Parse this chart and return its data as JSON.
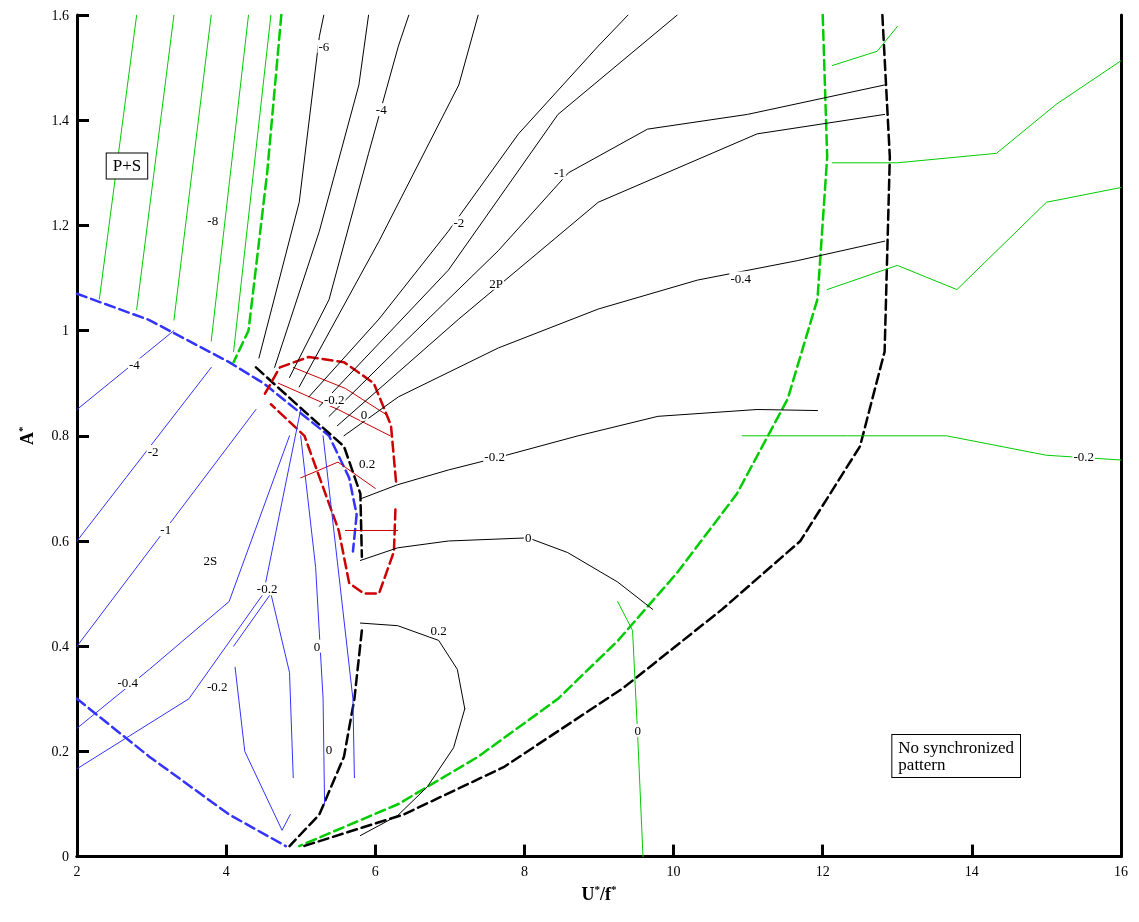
{
  "chart_data": {
    "type": "line",
    "xlabel": "U$^{*}$/f$^{*}$",
    "ylabel": "A$^{*}$",
    "xlim": [
      2,
      16
    ],
    "ylim": [
      0,
      1.6
    ],
    "xticks": [
      2,
      4,
      6,
      8,
      10,
      12,
      14,
      16
    ],
    "yticks": [
      0,
      0.2,
      0.4,
      0.6,
      0.8,
      1,
      1.2,
      1.4,
      1.6
    ],
    "grid": false,
    "marker": "none",
    "series": [
      {
        "color": "#3333ff",
        "line_style": "dashed",
        "x": [
          2,
          2.97,
          4.04,
          4.5,
          4.85,
          5.38,
          5.65,
          5.75,
          5.7
        ],
        "values": [
          1.07,
          1.02,
          0.94,
          0.9,
          0.86,
          0.8,
          0.72,
          0.65,
          0.58
        ]
      },
      {
        "color": "#3333ff",
        "line_style": "dashed",
        "x": [
          2,
          2.97,
          4.04,
          4.8
        ],
        "values": [
          0.3,
          0.19,
          0.08,
          0.02
        ]
      },
      {
        "color": "#00cc00",
        "line_style": "dashed",
        "x": [
          4.74,
          4.55,
          4.3,
          4.1
        ],
        "values": [
          1.6,
          1.3,
          1.0,
          0.94
        ]
      },
      {
        "color": "#00cc00",
        "line_style": "dashed",
        "x": [
          12,
          12.06,
          11.93,
          11.53,
          10.85,
          10.05,
          9.25,
          8.45,
          7.38,
          6.31,
          4.98
        ],
        "values": [
          1.6,
          1.33,
          1.06,
          0.87,
          0.69,
          0.54,
          0.41,
          0.3,
          0.19,
          0.1,
          0.02
        ]
      },
      {
        "color": "#000000",
        "line_style": "dashed",
        "x": [
          12.8,
          12.9,
          12.83,
          12.5,
          11.7,
          10.65,
          9.32,
          7.72,
          6.38,
          5.04
        ],
        "values": [
          1.6,
          1.33,
          0.96,
          0.78,
          0.6,
          0.47,
          0.32,
          0.17,
          0.08,
          0.02
        ]
      },
      {
        "color": "#000000",
        "line_style": "dashed",
        "x": [
          4.4,
          5.1,
          5.58,
          5.8,
          5.82
        ],
        "values": [
          0.93,
          0.84,
          0.78,
          0.69,
          0.57
        ]
      },
      {
        "color": "#000000",
        "line_style": "dashed",
        "x": [
          5.82,
          5.72,
          5.58,
          5.25,
          4.85
        ],
        "values": [
          0.43,
          0.3,
          0.19,
          0.08,
          0.02
        ]
      },
      {
        "color": "#cc0000",
        "line_style": "dashed",
        "x": [
          4.52,
          4.72,
          5.11,
          5.58,
          5.98,
          6.21,
          6.28
        ],
        "values": [
          0.88,
          0.93,
          0.95,
          0.94,
          0.9,
          0.82,
          0.71
        ]
      },
      {
        "color": "#cc0000",
        "line_style": "dashed",
        "x": [
          6.27,
          6.25,
          6.05,
          5.85,
          5.65,
          5.51,
          5.05,
          4.6
        ],
        "values": [
          0.66,
          0.58,
          0.5,
          0.5,
          0.52,
          0.62,
          0.8,
          0.86
        ]
      },
      {
        "color": "#cc0000",
        "line_style": "solid",
        "x": [
          4.7,
          5.5,
          6.2
        ],
        "values": [
          0.9,
          0.85,
          0.8
        ]
      },
      {
        "color": "#cc0000",
        "line_style": "solid",
        "x": [
          4.9,
          5.6,
          6.15
        ],
        "values": [
          0.93,
          0.89,
          0.84
        ]
      },
      {
        "color": "#cc0000",
        "line_style": "solid",
        "x": [
          5.0,
          5.5,
          6.0
        ],
        "values": [
          0.72,
          0.75,
          0.7
        ]
      },
      {
        "color": "#cc0000",
        "line_style": "solid",
        "x": [
          5.6,
          6.3
        ],
        "values": [
          0.62,
          0.62
        ]
      },
      {
        "color": "#000000",
        "line_style": "solid",
        "x": [
          5.8,
          6.3,
          6.85,
          7.1,
          7.2
        ],
        "values": [
          0.444,
          0.439,
          0.411,
          0.356,
          0.281
        ]
      },
      {
        "color": "#000000",
        "line_style": "solid",
        "x": [
          7.2,
          7.05,
          6.7,
          6.3,
          5.8
        ],
        "values": [
          0.281,
          0.207,
          0.133,
          0.078,
          0.04
        ]
      },
      {
        "color": "#000000",
        "line_style": "solid",
        "x": [
          5.8,
          6.3,
          6.98,
          8.05,
          8.58,
          9.25,
          9.72
        ],
        "values": [
          0.563,
          0.587,
          0.6,
          0.606,
          0.578,
          0.522,
          0.47
        ]
      },
      {
        "color": "#000000",
        "line_style": "solid",
        "x": [
          5.8,
          6.3,
          6.98,
          7.65,
          8.72,
          9.79,
          11.12,
          11.93
        ],
        "values": [
          0.68,
          0.707,
          0.735,
          0.759,
          0.8,
          0.837,
          0.85,
          0.848
        ]
      },
      {
        "color": "#000000",
        "line_style": "solid",
        "x": [
          5.58,
          6.31,
          7.65,
          8.99,
          10.32,
          11.66,
          12.83
        ],
        "values": [
          0.8,
          0.874,
          0.967,
          1.041,
          1.096,
          1.133,
          1.17
        ]
      },
      {
        "color": "#000000",
        "line_style": "solid",
        "x": [
          5.49,
          7.12,
          8.99,
          11.12,
          12.83
        ],
        "values": [
          0.819,
          1.022,
          1.244,
          1.374,
          1.411
        ]
      },
      {
        "color": "#000000",
        "line_style": "solid",
        "x": [
          5.38,
          6.31,
          7.65,
          8.59,
          9.65,
          10.99,
          12.83
        ],
        "values": [
          0.837,
          0.967,
          1.152,
          1.3,
          1.383,
          1.411,
          1.467
        ]
      },
      {
        "color": "#000000",
        "line_style": "solid",
        "x": [
          5.25,
          6.98,
          8.45,
          10.05
        ],
        "values": [
          0.856,
          1.115,
          1.411,
          1.6
        ]
      },
      {
        "color": "#000000",
        "line_style": "solid",
        "x": [
          5.11,
          6.05,
          6.98,
          7.92,
          8.99,
          9.39
        ],
        "values": [
          0.874,
          1.022,
          1.189,
          1.374,
          1.541,
          1.6
        ]
      },
      {
        "color": "#000000",
        "line_style": "solid",
        "x": [
          4.98,
          6.05,
          7.12,
          7.38
        ],
        "values": [
          0.893,
          1.17,
          1.467,
          1.6
        ]
      },
      {
        "color": "#000000",
        "line_style": "solid",
        "x": [
          4.85,
          5.38,
          5.91,
          6.31,
          6.45
        ],
        "values": [
          0.911,
          1.059,
          1.337,
          1.541,
          1.6
        ]
      },
      {
        "color": "#000000",
        "line_style": "solid",
        "x": [
          4.65,
          5.25,
          5.78,
          5.91
        ],
        "values": [
          0.93,
          1.189,
          1.467,
          1.6
        ]
      },
      {
        "color": "#000000",
        "line_style": "solid",
        "x": [
          4.44,
          4.98,
          5.25,
          5.31
        ],
        "values": [
          0.948,
          1.244,
          1.559,
          1.6
        ]
      },
      {
        "color": "#00cc00",
        "line_style": "solid",
        "x": [
          9.25,
          9.45,
          9.52,
          9.59
        ],
        "values": [
          0.485,
          0.43,
          0.226,
          0
        ]
      },
      {
        "color": "#00cc00",
        "line_style": "solid",
        "x": [
          10.92,
          12.33,
          13.66,
          15,
          16
        ],
        "values": [
          0.8,
          0.8,
          0.8,
          0.763,
          0.754
        ]
      },
      {
        "color": "#00cc00",
        "line_style": "solid",
        "x": [
          12.06,
          13.0,
          13.8,
          15,
          16
        ],
        "values": [
          1.078,
          1.124,
          1.078,
          1.244,
          1.272
        ]
      },
      {
        "color": "#00cc00",
        "line_style": "solid",
        "x": [
          12.13,
          13,
          14.33,
          15.13,
          16
        ],
        "values": [
          1.319,
          1.319,
          1.337,
          1.43,
          1.513
        ]
      },
      {
        "color": "#00cc00",
        "line_style": "solid",
        "x": [
          12.13,
          12.73,
          13
        ],
        "values": [
          1.504,
          1.531,
          1.578
        ]
      },
      {
        "color": "#00cc00",
        "line_style": "solid",
        "x": [
          2.3,
          2.8
        ],
        "values": [
          1.06,
          1.6
        ]
      },
      {
        "color": "#00cc00",
        "line_style": "solid",
        "x": [
          2.8,
          3.3
        ],
        "values": [
          1.04,
          1.6
        ]
      },
      {
        "color": "#00cc00",
        "line_style": "solid",
        "x": [
          3.3,
          3.8
        ],
        "values": [
          1.02,
          1.6
        ]
      },
      {
        "color": "#00cc00",
        "line_style": "solid",
        "x": [
          3.8,
          4.3
        ],
        "values": [
          0.98,
          1.6
        ]
      },
      {
        "color": "#00cc00",
        "line_style": "solid",
        "x": [
          4.1,
          4.6
        ],
        "values": [
          0.96,
          1.6
        ]
      },
      {
        "color": "#3333ff",
        "line_style": "solid",
        "x": [
          2,
          3.3
        ],
        "values": [
          0.85,
          1.0
        ]
      },
      {
        "color": "#3333ff",
        "line_style": "solid",
        "x": [
          2,
          3.8
        ],
        "values": [
          0.6,
          0.93
        ]
      },
      {
        "color": "#3333ff",
        "line_style": "solid",
        "x": [
          2,
          4.4
        ],
        "values": [
          0.4,
          0.85
        ]
      },
      {
        "color": "#3333ff",
        "line_style": "solid",
        "x": [
          2,
          2.97,
          4.04,
          4.85
        ],
        "values": [
          0.244,
          0.356,
          0.485,
          0.8
        ]
      },
      {
        "color": "#3333ff",
        "line_style": "solid",
        "x": [
          2,
          3.5,
          4.5,
          5.0
        ],
        "values": [
          0.167,
          0.3,
          0.5,
          0.85
        ]
      },
      {
        "color": "#3333ff",
        "line_style": "solid",
        "x": [
          4.1,
          4.6,
          4.85,
          4.9
        ],
        "values": [
          0.4,
          0.5,
          0.35,
          0.15
        ]
      },
      {
        "color": "#3333ff",
        "line_style": "solid",
        "x": [
          4.86,
          4.75,
          4.25,
          4.12
        ],
        "values": [
          0.08,
          0.05,
          0.2,
          0.36
        ]
      },
      {
        "color": "#3333ff",
        "line_style": "solid",
        "x": [
          5.0,
          5.2,
          5.3,
          5.32
        ],
        "values": [
          0.8,
          0.55,
          0.3,
          0.1
        ]
      },
      {
        "color": "#3333ff",
        "line_style": "solid",
        "x": [
          5.3,
          5.5,
          5.7,
          5.72
        ],
        "values": [
          0.8,
          0.55,
          0.3,
          0.15
        ]
      }
    ],
    "annotations": [
      {
        "text": "-6",
        "x": 5.31,
        "y": 1.54
      },
      {
        "text": "-4",
        "x": 6.08,
        "y": 1.42
      },
      {
        "text": "-2",
        "x": 7.12,
        "y": 1.205
      },
      {
        "text": "-1",
        "x": 8.47,
        "y": 1.3
      },
      {
        "text": "-0.4",
        "x": 10.9,
        "y": 1.1
      },
      {
        "text": "-0.2",
        "x": 7.6,
        "y": 0.76
      },
      {
        "text": "0",
        "x": 8.05,
        "y": 0.606
      },
      {
        "text": "0.2",
        "x": 6.85,
        "y": 0.43
      },
      {
        "text": "-8",
        "x": 3.82,
        "y": 1.209
      },
      {
        "text": "-4",
        "x": 2.77,
        "y": 0.935
      },
      {
        "text": "-2",
        "x": 3.02,
        "y": 0.77
      },
      {
        "text": "-1",
        "x": 3.19,
        "y": 0.622
      },
      {
        "text": "-0.4",
        "x": 2.68,
        "y": 0.331
      },
      {
        "text": "-0.2",
        "x": 3.88,
        "y": 0.324
      },
      {
        "text": "-0.2",
        "x": 4.55,
        "y": 0.509
      },
      {
        "text": "0",
        "x": 5.22,
        "y": 0.4
      },
      {
        "text": "0",
        "x": 5.38,
        "y": 0.204
      },
      {
        "text": "-0.2",
        "x": 5.45,
        "y": 0.869
      },
      {
        "text": "0",
        "x": 5.85,
        "y": 0.841
      },
      {
        "text": "0.2",
        "x": 5.89,
        "y": 0.748
      },
      {
        "text": "-0.2",
        "x": 15.5,
        "y": 0.76
      },
      {
        "text": "0",
        "x": 9.52,
        "y": 0.24
      },
      {
        "text": "P+S",
        "x": 2.67,
        "y": 1.313
      },
      {
        "text": "2P",
        "x": 7.62,
        "y": 1.09
      },
      {
        "text": "2S",
        "x": 3.79,
        "y": 0.563
      },
      "No synchronized\npattern"
    ]
  }
}
